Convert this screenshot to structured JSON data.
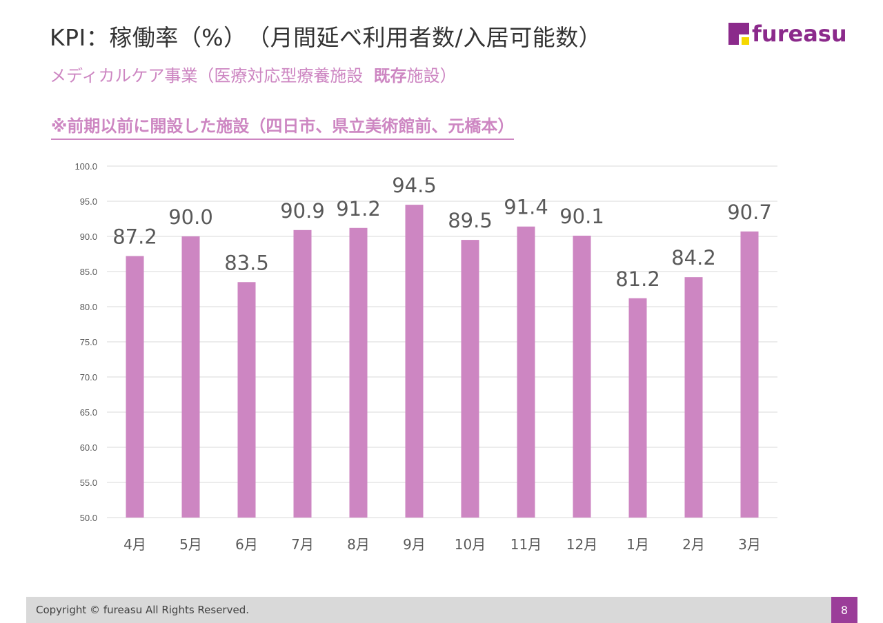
{
  "header": {
    "title": "KPI：稼働率（%）　（月間延べ利用者数/入居可能数）",
    "subtitle_prefix": "メディカルケア事業（医療対応型療養施設",
    "subtitle_bold": "既存",
    "subtitle_suffix": "施設）",
    "note": "※前期以前に開設した施設（四日市、県立美術館前、元橋本）"
  },
  "logo": {
    "text": "fureasu",
    "colors": {
      "square": "#8b2a8b",
      "accent": "#f5d800"
    }
  },
  "colors": {
    "bar": "#cd86c2",
    "grid": "#d9d9d9",
    "label": "#595959",
    "accent": "#cd86c2"
  },
  "chart_data": {
    "type": "bar",
    "categories": [
      "4月",
      "5月",
      "6月",
      "7月",
      "8月",
      "9月",
      "10月",
      "11月",
      "12月",
      "1月",
      "2月",
      "3月"
    ],
    "values": [
      87.2,
      90.0,
      83.5,
      90.9,
      91.2,
      94.5,
      89.5,
      91.4,
      90.1,
      81.2,
      84.2,
      90.7
    ],
    "ylim": [
      50,
      100
    ],
    "yticks": [
      "50.0",
      "55.0",
      "60.0",
      "65.0",
      "70.0",
      "75.0",
      "80.0",
      "85.0",
      "90.0",
      "95.0",
      "100.0"
    ],
    "data_labels": [
      "87.2",
      "90.0",
      "83.5",
      "90.9",
      "91.2",
      "94.5",
      "89.5",
      "91.4",
      "90.1",
      "81.2",
      "84.2",
      "90.7"
    ],
    "grid": true,
    "legend": "none"
  },
  "footer": {
    "copyright": "Copyright © fureasu All Rights Reserved.",
    "page": "8"
  }
}
